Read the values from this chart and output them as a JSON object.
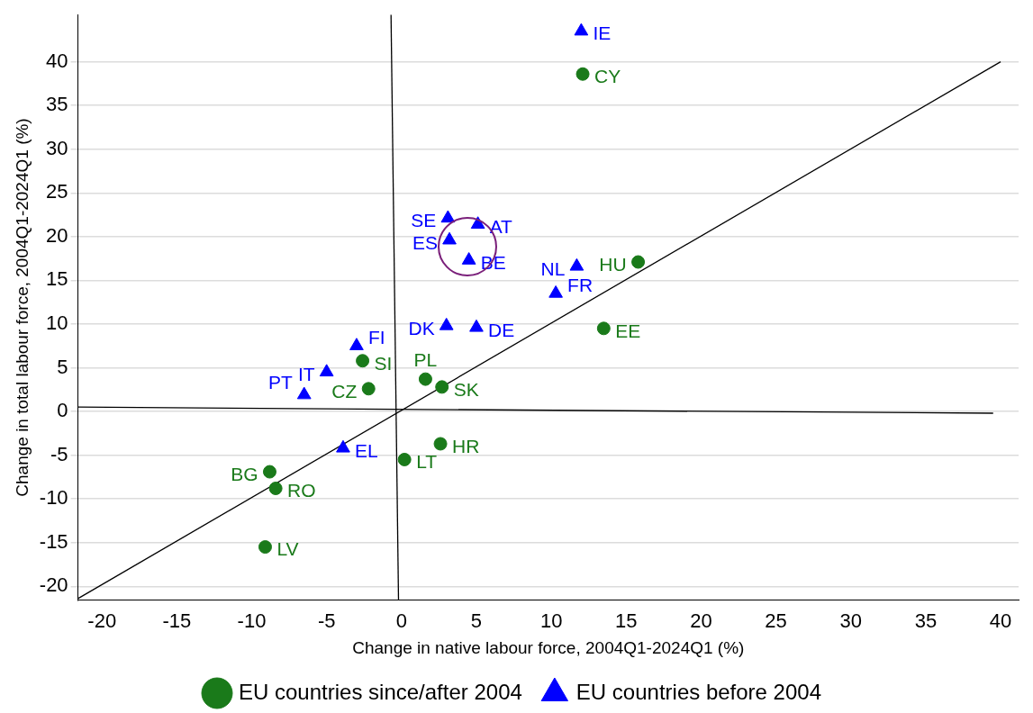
{
  "chart_data": {
    "type": "scatter",
    "xlabel": "Change in native labour force, 2004Q1-2024Q1 (%)",
    "ylabel": "Change in total labour force, 2004Q1-2024Q1 (%)",
    "xlim": [
      -21.6,
      41.2
    ],
    "ylim": [
      -21.6,
      45.4
    ],
    "xticks": [
      -20,
      -15,
      -10,
      -5,
      0,
      5,
      10,
      15,
      20,
      25,
      30,
      35,
      40
    ],
    "yticks": [
      -20,
      -15,
      -10,
      -5,
      0,
      5,
      10,
      15,
      20,
      25,
      30,
      35,
      40
    ],
    "grid": "y",
    "legend": "bottom",
    "series": [
      {
        "name": "EU countries since/after 2004",
        "color": "#1a7a1a",
        "marker": "circle",
        "x": [
          12.1,
          15.8,
          13.5,
          -2.6,
          1.6,
          -2.2,
          2.7,
          2.6,
          0.2,
          -8.8,
          -8.4,
          -9.1
        ],
        "values": [
          38.6,
          17.1,
          9.5,
          5.8,
          3.7,
          2.6,
          2.8,
          -3.7,
          -5.5,
          -6.9,
          -8.8,
          -15.5
        ]
      },
      {
        "name": "EU countries before 2004",
        "color": "#0000ff",
        "marker": "triangle",
        "x": [
          12.0,
          3.1,
          5.1,
          3.2,
          4.5,
          11.7,
          10.3,
          3.0,
          5.0,
          -3.0,
          -5.0,
          -6.5,
          -3.9
        ],
        "values": [
          43.5,
          22.1,
          21.4,
          19.6,
          17.3,
          16.6,
          13.5,
          9.8,
          9.6,
          7.5,
          4.5,
          1.9,
          -4.2
        ]
      },
      {
        "type": "line",
        "color": "#000000",
        "marker": "none",
        "x": [
          -21.6,
          40
        ],
        "values": [
          -21.4,
          40
        ]
      },
      {
        "type": "line",
        "color": "#000000",
        "marker": "none",
        "x": [
          -0.7,
          -0.2
        ],
        "values": [
          45.4,
          -21.6
        ]
      },
      {
        "type": "line",
        "color": "#000000",
        "marker": "none",
        "x": [
          -21.6,
          39.5
        ],
        "values": [
          0.5,
          -0.2
        ]
      }
    ],
    "annotations": [
      {
        "text": "CY",
        "x": 12.1,
        "y": 38.6
      },
      {
        "text": "HU",
        "x": 15.8,
        "y": 17.1
      },
      {
        "text": "EE",
        "x": 13.5,
        "y": 9.5
      },
      {
        "text": "SI",
        "x": -2.6,
        "y": 5.8
      },
      {
        "text": "PL",
        "x": 1.6,
        "y": 3.7
      },
      {
        "text": "CZ",
        "x": -2.2,
        "y": 2.6
      },
      {
        "text": "SK",
        "x": 2.7,
        "y": 2.8
      },
      {
        "text": "HR",
        "x": 2.6,
        "y": -3.7
      },
      {
        "text": "LT",
        "x": 0.2,
        "y": -5.5
      },
      {
        "text": "BG",
        "x": -8.8,
        "y": -6.9
      },
      {
        "text": "RO",
        "x": -8.4,
        "y": -8.8
      },
      {
        "text": "LV",
        "x": -9.1,
        "y": -15.5
      },
      {
        "text": "IE",
        "x": 12.0,
        "y": 43.5
      },
      {
        "text": "SE",
        "x": 3.1,
        "y": 22.1
      },
      {
        "text": "AT",
        "x": 5.1,
        "y": 21.4
      },
      {
        "text": "ES",
        "x": 3.2,
        "y": 19.6
      },
      {
        "text": "BE",
        "x": 4.5,
        "y": 17.3
      },
      {
        "text": "NL",
        "x": 11.7,
        "y": 16.6
      },
      {
        "text": "FR",
        "x": 10.3,
        "y": 13.5
      },
      {
        "text": "DK",
        "x": 3.0,
        "y": 9.8
      },
      {
        "text": "DE",
        "x": 5.0,
        "y": 9.6
      },
      {
        "text": "FI",
        "x": -3.0,
        "y": 7.5
      },
      {
        "text": "IT",
        "x": -5.0,
        "y": 4.5
      },
      {
        "text": "PT",
        "x": -6.5,
        "y": 1.9
      },
      {
        "text": "EL",
        "x": -3.9,
        "y": -4.2
      }
    ]
  }
}
